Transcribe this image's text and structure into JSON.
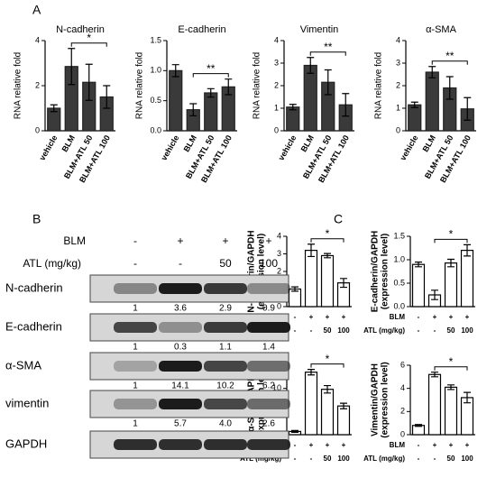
{
  "panel_labels": [
    "A",
    "B",
    "C"
  ],
  "chart_data": [
    {
      "type": "bar",
      "title": "N-cadherin",
      "ylabel": [
        "RNA relative fold"
      ],
      "categories": [
        "vehicle",
        "BLM",
        "BLM+ATL 50",
        "BLM+ATL 100"
      ],
      "values": [
        1.0,
        2.85,
        2.15,
        1.5
      ],
      "errors": [
        0.15,
        0.8,
        0.8,
        0.5
      ],
      "color": "#3a3a3a",
      "edgecolor": "#222222",
      "ylim": [
        0,
        4
      ],
      "yticks": [
        0,
        2,
        4
      ],
      "annotation": "*"
    },
    {
      "type": "bar",
      "title": "E-cadherin",
      "ylabel": [
        "RNA relative fold"
      ],
      "categories": [
        "vehicle",
        "BLM",
        "BLM+ATL 50",
        "BLM+ATL 100"
      ],
      "values": [
        1.0,
        0.35,
        0.63,
        0.73
      ],
      "errors": [
        0.1,
        0.1,
        0.07,
        0.13
      ],
      "color": "#3a3a3a",
      "edgecolor": "#222222",
      "ylim": [
        0,
        1.5
      ],
      "yticks": [
        {
          "value": 0,
          "label": "0.0"
        },
        0.5,
        {
          "value": 1,
          "label": "1.0"
        },
        1.5
      ],
      "annotation": "**"
    },
    {
      "type": "bar",
      "title": "Vimentin",
      "ylabel": [
        "RNA relative fold"
      ],
      "categories": [
        "vehicle",
        "BLM",
        "BLM+ATL 50",
        "BLM+ATL 100"
      ],
      "values": [
        1.05,
        2.9,
        2.15,
        1.15
      ],
      "errors": [
        0.12,
        0.35,
        0.55,
        0.5
      ],
      "color": "#3a3a3a",
      "edgecolor": "#222222",
      "ylim": [
        0,
        4
      ],
      "yticks": [
        0,
        1,
        2,
        3,
        4
      ],
      "annotation": "**"
    },
    {
      "type": "bar",
      "title": "α-SMA",
      "ylabel": [
        "RNA relative fold"
      ],
      "categories": [
        "vehicle",
        "BLM",
        "BLM+ATL 50",
        "BLM+ATL 100"
      ],
      "values": [
        1.15,
        2.6,
        1.9,
        0.97
      ],
      "errors": [
        0.12,
        0.25,
        0.5,
        0.5
      ],
      "color": "#3a3a3a",
      "edgecolor": "#222222",
      "ylim": [
        0,
        4
      ],
      "yticks": [
        0,
        1,
        2,
        3,
        4
      ],
      "annotation": "**"
    },
    {
      "type": "bar",
      "ylabel": [
        "N-cadherin/GAPDH",
        "(expression level)"
      ],
      "values": [
        1.0,
        3.2,
        2.9,
        1.35
      ],
      "errors": [
        0.12,
        0.35,
        0.12,
        0.25
      ],
      "color": "#ffffff",
      "edgecolor": "#000000",
      "ylim": [
        0,
        4
      ],
      "yticks": [
        0,
        1,
        2,
        3,
        4
      ],
      "annotation": "*",
      "treatment_rows": [
        {
          "label": "BLM",
          "values": [
            "-",
            "+",
            "+",
            "+"
          ]
        },
        {
          "label": "ATL (mg/kg)",
          "values": [
            "-",
            "-",
            "50",
            "100"
          ]
        }
      ]
    },
    {
      "type": "bar",
      "ylabel": [
        "E-cadherin/GAPDH",
        "(expression level)"
      ],
      "values": [
        0.9,
        0.25,
        0.93,
        1.2
      ],
      "errors": [
        0.05,
        0.1,
        0.08,
        0.12
      ],
      "color": "#ffffff",
      "edgecolor": "#000000",
      "ylim": [
        0,
        1.5
      ],
      "yticks": [
        {
          "value": 0,
          "label": "0.0"
        },
        0.5,
        {
          "value": 1,
          "label": "1.0"
        },
        1.5
      ],
      "annotation": "*",
      "treatment_rows": [
        {
          "label": "BLM",
          "values": [
            "-",
            "+",
            "+",
            "+"
          ]
        },
        {
          "label": "ATL (mg/kg)",
          "values": [
            "-",
            "-",
            "50",
            "100"
          ]
        }
      ]
    },
    {
      "type": "bar",
      "ylabel": [
        "α-SMA/GAPDH",
        "(expression level)"
      ],
      "values": [
        0.7,
        13.5,
        9.8,
        6.2
      ],
      "errors": [
        0.2,
        0.6,
        0.8,
        0.6
      ],
      "color": "#ffffff",
      "edgecolor": "#000000",
      "ylim": [
        0,
        15
      ],
      "yticks": [
        0,
        5,
        10,
        15
      ],
      "annotation": "*",
      "treatment_rows": [
        {
          "label": "BLM",
          "values": [
            "-",
            "+",
            "+",
            "+"
          ]
        },
        {
          "label": "ATL (mg/kg)",
          "values": [
            "-",
            "-",
            "50",
            "100"
          ]
        }
      ]
    },
    {
      "type": "bar",
      "ylabel": [
        "Vimentin/GAPDH",
        "(expression level)"
      ],
      "values": [
        0.8,
        5.2,
        4.1,
        3.2
      ],
      "errors": [
        0.08,
        0.2,
        0.2,
        0.45
      ],
      "color": "#ffffff",
      "edgecolor": "#000000",
      "ylim": [
        0,
        6
      ],
      "yticks": [
        0,
        2,
        4,
        6
      ],
      "annotation": "*",
      "treatment_rows": [
        {
          "label": "BLM",
          "values": [
            "-",
            "+",
            "+",
            "+"
          ]
        },
        {
          "label": "ATL (mg/kg)",
          "values": [
            "-",
            "-",
            "50",
            "100"
          ]
        }
      ]
    }
  ],
  "blot": {
    "treatments": [
      {
        "label": "BLM",
        "values": [
          "-",
          "+",
          "+",
          "+"
        ]
      },
      {
        "label": "ATL (mg/kg)",
        "values": [
          "-",
          "-",
          "50",
          "100"
        ]
      }
    ],
    "proteins": [
      {
        "name": "N-cadherin",
        "quant": [
          "1",
          "3.6",
          "2.9",
          "0.9"
        ]
      },
      {
        "name": "E-cadherin",
        "quant": [
          "1",
          "0.3",
          "1.1",
          "1.4"
        ]
      },
      {
        "name": "α-SMA",
        "quant": [
          "1",
          "14.1",
          "10.2",
          "6.2"
        ]
      },
      {
        "name": "vimentin",
        "quant": [
          "1",
          "5.7",
          "4.0",
          "2.6"
        ]
      },
      {
        "name": "GAPDH"
      }
    ]
  }
}
